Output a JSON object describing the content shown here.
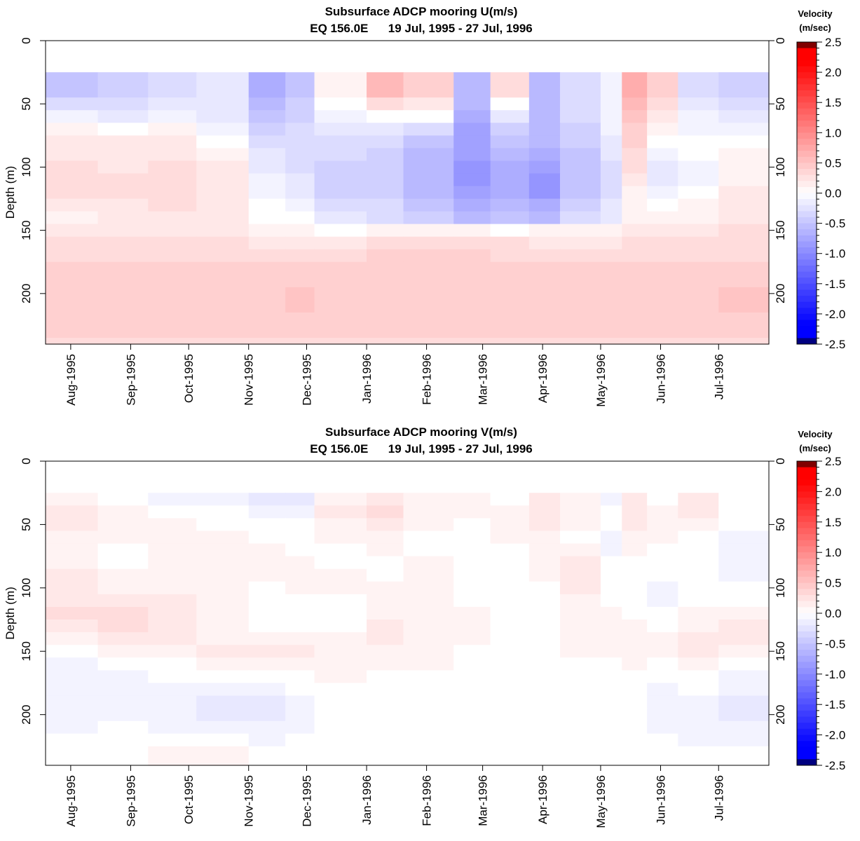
{
  "chart_data": [
    {
      "type": "heatmap",
      "title": "Subsurface ADCP mooring U(m/s)",
      "subtitle": "EQ 156.0E      19 Jul, 1995 - 27 Jul, 1996",
      "xlabel": "",
      "ylabel": "Depth (m)",
      "xlim": [
        "1995-07-19",
        "1996-07-27"
      ],
      "ylim": [
        0,
        240
      ],
      "y_reversed": true,
      "y_ticks": [
        "0",
        "50",
        "100",
        "150",
        "200"
      ],
      "y_ticks_right": [
        "0",
        "50",
        "100",
        "150",
        "200"
      ],
      "x_ticks": [
        "Aug-1995",
        "Sep-1995",
        "Oct-1995",
        "Nov-1995",
        "Dec-1995",
        "Jan-1996",
        "Feb-1996",
        "Mar-1996",
        "Apr-1996",
        "May-1996",
        "Jun-1996",
        "Jul-1996"
      ],
      "x_tick_dates": [
        "1995-08-01",
        "1995-09-01",
        "1995-10-01",
        "1995-11-01",
        "1995-12-01",
        "1996-01-01",
        "1996-02-01",
        "1996-03-01",
        "1996-04-01",
        "1996-05-01",
        "1996-06-01",
        "1996-07-01"
      ],
      "data_depth_range": [
        25,
        240
      ],
      "depths": [
        30,
        40,
        50,
        60,
        70,
        80,
        90,
        100,
        110,
        120,
        130,
        140,
        150,
        160,
        170,
        180,
        190,
        200,
        210,
        220,
        230,
        240
      ],
      "times": [
        "1995-07-19",
        "1995-08-15",
        "1995-09-10",
        "1995-10-05",
        "1995-11-01",
        "1995-11-20",
        "1995-12-05",
        "1996-01-01",
        "1996-01-20",
        "1996-02-15",
        "1996-03-05",
        "1996-03-25",
        "1996-04-10",
        "1996-05-01",
        "1996-05-12",
        "1996-05-25",
        "1996-06-10",
        "1996-07-01",
        "1996-07-27"
      ],
      "values": [
        [
          -0.5,
          -0.4,
          -0.3,
          -0.2,
          -0.7,
          -0.5,
          0.1,
          0.6,
          0.4,
          -0.6,
          0.3,
          -0.6,
          -0.3,
          -0.1,
          0.7,
          0.4,
          -0.3,
          -0.4,
          -0.3
        ],
        [
          -0.5,
          -0.4,
          -0.3,
          -0.2,
          -0.7,
          -0.5,
          0.1,
          0.6,
          0.4,
          -0.6,
          0.3,
          -0.6,
          -0.3,
          -0.1,
          0.7,
          0.4,
          -0.3,
          -0.4,
          -0.3
        ],
        [
          -0.3,
          -0.3,
          -0.2,
          -0.2,
          -0.6,
          -0.4,
          0.0,
          0.3,
          0.2,
          -0.6,
          0.0,
          -0.6,
          -0.3,
          -0.1,
          0.6,
          0.3,
          -0.2,
          -0.3,
          -0.2
        ],
        [
          -0.1,
          -0.2,
          -0.1,
          -0.2,
          -0.5,
          -0.4,
          -0.1,
          0.0,
          0.0,
          -0.7,
          -0.2,
          -0.6,
          -0.3,
          -0.1,
          0.5,
          0.2,
          -0.1,
          -0.2,
          -0.1
        ],
        [
          0.1,
          0.0,
          0.1,
          -0.1,
          -0.4,
          -0.3,
          -0.2,
          -0.2,
          -0.3,
          -0.8,
          -0.4,
          -0.6,
          -0.4,
          -0.1,
          0.4,
          0.1,
          -0.1,
          -0.1,
          0.0
        ],
        [
          0.2,
          0.2,
          0.2,
          0.0,
          -0.3,
          -0.3,
          -0.3,
          -0.3,
          -0.5,
          -0.8,
          -0.5,
          -0.6,
          -0.4,
          -0.2,
          0.4,
          0.0,
          0.0,
          0.0,
          0.1
        ],
        [
          0.2,
          0.2,
          0.2,
          0.1,
          -0.2,
          -0.3,
          -0.3,
          -0.4,
          -0.6,
          -0.8,
          -0.6,
          -0.7,
          -0.5,
          -0.2,
          0.3,
          -0.1,
          0.0,
          0.1,
          0.1
        ],
        [
          0.3,
          0.2,
          0.3,
          0.2,
          -0.2,
          -0.3,
          -0.4,
          -0.4,
          -0.6,
          -0.9,
          -0.7,
          -0.8,
          -0.5,
          -0.3,
          0.3,
          -0.2,
          -0.1,
          0.1,
          0.2
        ],
        [
          0.3,
          0.3,
          0.3,
          0.2,
          -0.1,
          -0.2,
          -0.4,
          -0.4,
          -0.6,
          -0.9,
          -0.7,
          -0.9,
          -0.5,
          -0.3,
          0.2,
          -0.2,
          -0.1,
          0.1,
          0.2
        ],
        [
          0.3,
          0.3,
          0.3,
          0.2,
          -0.1,
          -0.2,
          -0.4,
          -0.4,
          -0.6,
          -0.8,
          -0.7,
          -0.9,
          -0.5,
          -0.3,
          0.1,
          -0.1,
          0.0,
          0.2,
          0.2
        ],
        [
          0.2,
          0.2,
          0.3,
          0.2,
          0.0,
          -0.1,
          -0.3,
          -0.3,
          -0.5,
          -0.7,
          -0.6,
          -0.7,
          -0.4,
          -0.2,
          0.1,
          0.0,
          0.1,
          0.2,
          0.3
        ],
        [
          0.1,
          0.2,
          0.2,
          0.2,
          0.0,
          0.0,
          -0.2,
          -0.3,
          -0.4,
          -0.6,
          -0.5,
          -0.6,
          -0.3,
          -0.2,
          0.1,
          0.1,
          0.1,
          0.2,
          0.3
        ],
        [
          0.2,
          0.2,
          0.2,
          0.2,
          0.1,
          0.1,
          0.0,
          0.1,
          0.1,
          0.1,
          0.0,
          0.1,
          0.1,
          0.1,
          0.2,
          0.2,
          0.2,
          0.3,
          0.3
        ],
        [
          0.3,
          0.3,
          0.3,
          0.3,
          0.2,
          0.2,
          0.2,
          0.3,
          0.3,
          0.3,
          0.3,
          0.2,
          0.2,
          0.2,
          0.3,
          0.3,
          0.3,
          0.3,
          0.3
        ],
        [
          0.3,
          0.3,
          0.3,
          0.3,
          0.3,
          0.3,
          0.3,
          0.4,
          0.4,
          0.4,
          0.3,
          0.3,
          0.3,
          0.3,
          0.3,
          0.3,
          0.3,
          0.3,
          0.3
        ],
        [
          0.4,
          0.4,
          0.4,
          0.4,
          0.4,
          0.4,
          0.4,
          0.4,
          0.4,
          0.4,
          0.4,
          0.4,
          0.4,
          0.4,
          0.4,
          0.4,
          0.4,
          0.4,
          0.4
        ],
        [
          0.4,
          0.4,
          0.4,
          0.4,
          0.4,
          0.4,
          0.4,
          0.4,
          0.4,
          0.4,
          0.4,
          0.4,
          0.4,
          0.4,
          0.4,
          0.4,
          0.4,
          0.4,
          0.4
        ],
        [
          0.4,
          0.4,
          0.4,
          0.4,
          0.4,
          0.5,
          0.4,
          0.4,
          0.4,
          0.4,
          0.4,
          0.4,
          0.4,
          0.4,
          0.4,
          0.4,
          0.4,
          0.5,
          0.4
        ],
        [
          0.4,
          0.4,
          0.4,
          0.4,
          0.4,
          0.5,
          0.4,
          0.4,
          0.4,
          0.4,
          0.4,
          0.4,
          0.4,
          0.4,
          0.4,
          0.4,
          0.4,
          0.5,
          0.4
        ],
        [
          0.4,
          0.4,
          0.4,
          0.4,
          0.4,
          0.4,
          0.4,
          0.4,
          0.4,
          0.4,
          0.4,
          0.4,
          0.4,
          0.4,
          0.4,
          0.4,
          0.4,
          0.4,
          0.4
        ],
        [
          0.4,
          0.4,
          0.4,
          0.4,
          0.4,
          0.4,
          0.4,
          0.4,
          0.4,
          0.4,
          0.4,
          0.4,
          0.4,
          0.4,
          0.4,
          0.4,
          0.4,
          0.4,
          0.4
        ],
        [
          0.3,
          0.3,
          0.3,
          0.3,
          0.3,
          0.3,
          0.3,
          0.3,
          0.3,
          0.3,
          0.3,
          0.3,
          0.3,
          0.3,
          0.3,
          0.3,
          0.3,
          0.3,
          0.3
        ]
      ],
      "colorbar": {
        "title_line1": "Velocity",
        "title_line2": "(m/sec)",
        "range": [
          -2.5,
          2.5
        ],
        "ticks": [
          "2.5",
          "2.0",
          "1.5",
          "1.0",
          "0.5",
          "0.0",
          "-0.5",
          "-1.0",
          "-1.5",
          "-2.0",
          "-2.5"
        ],
        "colors": {
          "max": "#800000",
          "positive": "#ff0000",
          "zero": "#ffffff",
          "negative": "#0000ff",
          "min": "#000080"
        }
      }
    },
    {
      "type": "heatmap",
      "title": "Subsurface ADCP mooring V(m/s)",
      "subtitle": "EQ 156.0E      19 Jul, 1995 - 27 Jul, 1996",
      "xlabel": "",
      "ylabel": "Depth (m)",
      "xlim": [
        "1995-07-19",
        "1996-07-27"
      ],
      "ylim": [
        0,
        240
      ],
      "y_reversed": true,
      "y_ticks": [
        "0",
        "50",
        "100",
        "150",
        "200"
      ],
      "y_ticks_right": [
        "0",
        "50",
        "100",
        "150",
        "200"
      ],
      "x_ticks": [
        "Aug-1995",
        "Sep-1995",
        "Oct-1995",
        "Nov-1995",
        "Dec-1995",
        "Jan-1996",
        "Feb-1996",
        "Mar-1996",
        "Apr-1996",
        "May-1996",
        "Jun-1996",
        "Jul-1996"
      ],
      "x_tick_dates": [
        "1995-08-01",
        "1995-09-01",
        "1995-10-01",
        "1995-11-01",
        "1995-12-01",
        "1996-01-01",
        "1996-02-01",
        "1996-03-01",
        "1996-04-01",
        "1996-05-01",
        "1996-06-01",
        "1996-07-01"
      ],
      "data_depth_range": [
        25,
        240
      ],
      "depths": [
        30,
        40,
        50,
        60,
        70,
        80,
        90,
        100,
        110,
        120,
        130,
        140,
        150,
        160,
        170,
        180,
        190,
        200,
        210,
        220,
        230,
        240
      ],
      "times": [
        "1995-07-19",
        "1995-08-15",
        "1995-09-10",
        "1995-10-05",
        "1995-11-01",
        "1995-11-20",
        "1995-12-05",
        "1996-01-01",
        "1996-01-20",
        "1996-02-15",
        "1996-03-05",
        "1996-03-25",
        "1996-04-10",
        "1996-05-01",
        "1996-05-12",
        "1996-05-25",
        "1996-06-10",
        "1996-07-01",
        "1996-07-27"
      ],
      "values": [
        [
          0.1,
          0.0,
          -0.1,
          -0.1,
          -0.2,
          -0.2,
          0.1,
          0.2,
          0.1,
          0.1,
          0.0,
          0.2,
          0.1,
          -0.1,
          0.2,
          0.0,
          0.2,
          0.0,
          -0.1
        ],
        [
          0.2,
          0.1,
          0.0,
          0.0,
          -0.1,
          -0.1,
          0.2,
          0.3,
          0.1,
          0.1,
          0.1,
          0.2,
          0.1,
          0.0,
          0.2,
          0.1,
          0.2,
          0.0,
          -0.1
        ],
        [
          0.2,
          0.1,
          0.1,
          0.0,
          0.0,
          0.0,
          0.1,
          0.2,
          0.1,
          0.0,
          0.1,
          0.2,
          0.1,
          0.0,
          0.2,
          0.1,
          0.1,
          0.0,
          -0.1
        ],
        [
          0.1,
          0.1,
          0.1,
          0.1,
          0.0,
          0.0,
          0.1,
          0.1,
          0.0,
          0.0,
          0.1,
          0.1,
          0.0,
          -0.1,
          0.1,
          0.1,
          0.0,
          -0.1,
          -0.2
        ],
        [
          0.1,
          0.0,
          0.1,
          0.1,
          0.1,
          0.0,
          0.0,
          0.1,
          0.0,
          0.0,
          0.0,
          0.1,
          0.1,
          -0.1,
          0.1,
          0.0,
          0.0,
          -0.1,
          -0.1
        ],
        [
          0.1,
          0.0,
          0.1,
          0.1,
          0.1,
          0.1,
          0.0,
          0.0,
          0.1,
          0.0,
          0.0,
          0.1,
          0.2,
          0.0,
          0.0,
          0.0,
          0.0,
          -0.1,
          -0.1
        ],
        [
          0.2,
          0.1,
          0.1,
          0.1,
          0.1,
          0.1,
          0.1,
          0.0,
          0.1,
          0.0,
          0.0,
          0.1,
          0.2,
          0.0,
          0.0,
          0.0,
          0.0,
          -0.1,
          -0.1
        ],
        [
          0.2,
          0.1,
          0.1,
          0.1,
          0.0,
          0.1,
          0.1,
          0.1,
          0.1,
          0.0,
          0.0,
          0.0,
          0.2,
          0.0,
          0.0,
          -0.1,
          0.0,
          0.0,
          -0.1
        ],
        [
          0.2,
          0.2,
          0.2,
          0.1,
          0.0,
          0.0,
          0.0,
          0.1,
          0.1,
          0.0,
          0.0,
          0.0,
          0.1,
          0.0,
          0.0,
          -0.1,
          0.0,
          0.0,
          0.0
        ],
        [
          0.3,
          0.3,
          0.2,
          0.1,
          0.0,
          0.0,
          0.0,
          0.1,
          0.1,
          0.1,
          0.0,
          0.0,
          0.1,
          0.1,
          0.0,
          0.0,
          0.1,
          0.1,
          0.1
        ],
        [
          0.2,
          0.3,
          0.2,
          0.1,
          0.0,
          0.0,
          0.0,
          0.2,
          0.1,
          0.1,
          0.0,
          0.0,
          0.1,
          0.1,
          0.1,
          0.0,
          0.1,
          0.2,
          0.2
        ],
        [
          0.1,
          0.2,
          0.2,
          0.1,
          0.1,
          0.1,
          0.1,
          0.2,
          0.1,
          0.1,
          0.0,
          0.0,
          0.1,
          0.1,
          0.1,
          0.1,
          0.2,
          0.2,
          0.2
        ],
        [
          0.0,
          0.1,
          0.1,
          0.2,
          0.2,
          0.2,
          0.1,
          0.1,
          0.1,
          0.0,
          0.0,
          0.0,
          0.1,
          0.1,
          0.1,
          0.1,
          0.2,
          0.1,
          0.1
        ],
        [
          -0.1,
          0.0,
          0.0,
          0.1,
          0.1,
          0.1,
          0.1,
          0.1,
          0.1,
          0.0,
          0.0,
          0.0,
          0.0,
          0.0,
          0.1,
          0.0,
          0.1,
          0.0,
          0.0
        ],
        [
          -0.1,
          -0.1,
          0.0,
          0.0,
          0.0,
          0.0,
          0.1,
          0.0,
          0.0,
          0.0,
          0.0,
          0.0,
          0.0,
          0.0,
          0.0,
          0.0,
          0.0,
          -0.1,
          -0.1
        ],
        [
          -0.1,
          -0.1,
          -0.1,
          -0.1,
          -0.1,
          0.0,
          0.0,
          0.0,
          0.0,
          0.0,
          0.0,
          0.0,
          0.0,
          0.0,
          0.0,
          -0.1,
          0.0,
          -0.1,
          -0.2
        ],
        [
          -0.1,
          -0.1,
          -0.1,
          -0.2,
          -0.2,
          -0.1,
          0.0,
          0.0,
          0.0,
          0.0,
          0.0,
          0.0,
          0.0,
          0.0,
          0.0,
          -0.1,
          -0.1,
          -0.2,
          -0.2
        ],
        [
          -0.1,
          -0.1,
          -0.1,
          -0.2,
          -0.2,
          -0.1,
          0.0,
          0.0,
          0.0,
          0.0,
          0.0,
          0.0,
          0.0,
          0.0,
          0.0,
          -0.1,
          -0.1,
          -0.2,
          -0.1
        ],
        [
          -0.1,
          0.0,
          -0.1,
          -0.1,
          -0.1,
          -0.1,
          0.0,
          0.0,
          0.0,
          0.0,
          0.0,
          0.0,
          0.0,
          0.0,
          0.0,
          -0.1,
          -0.1,
          -0.1,
          -0.1
        ],
        [
          0.0,
          0.0,
          0.0,
          0.0,
          -0.1,
          0.0,
          0.0,
          0.0,
          0.0,
          0.0,
          0.0,
          0.0,
          0.0,
          0.0,
          0.0,
          0.0,
          -0.1,
          -0.1,
          0.0
        ],
        [
          0.0,
          0.0,
          0.1,
          0.1,
          0.0,
          0.0,
          0.0,
          0.0,
          0.0,
          0.0,
          0.0,
          0.0,
          0.0,
          0.0,
          0.0,
          0.0,
          0.0,
          0.0,
          0.0
        ],
        [
          0.0,
          0.0,
          0.1,
          0.1,
          0.0,
          0.0,
          0.0,
          0.0,
          0.0,
          0.0,
          0.0,
          0.0,
          0.0,
          0.0,
          0.0,
          0.0,
          0.0,
          0.0,
          0.0
        ]
      ],
      "colorbar": {
        "title_line1": "Velocity",
        "title_line2": "(m/sec)",
        "range": [
          -2.5,
          2.5
        ],
        "ticks": [
          "2.5",
          "2.0",
          "1.5",
          "1.0",
          "0.5",
          "0.0",
          "-0.5",
          "-1.0",
          "-1.5",
          "-2.0",
          "-2.5"
        ],
        "colors": {
          "max": "#800000",
          "positive": "#ff0000",
          "zero": "#ffffff",
          "negative": "#0000ff",
          "min": "#000080"
        }
      }
    }
  ]
}
